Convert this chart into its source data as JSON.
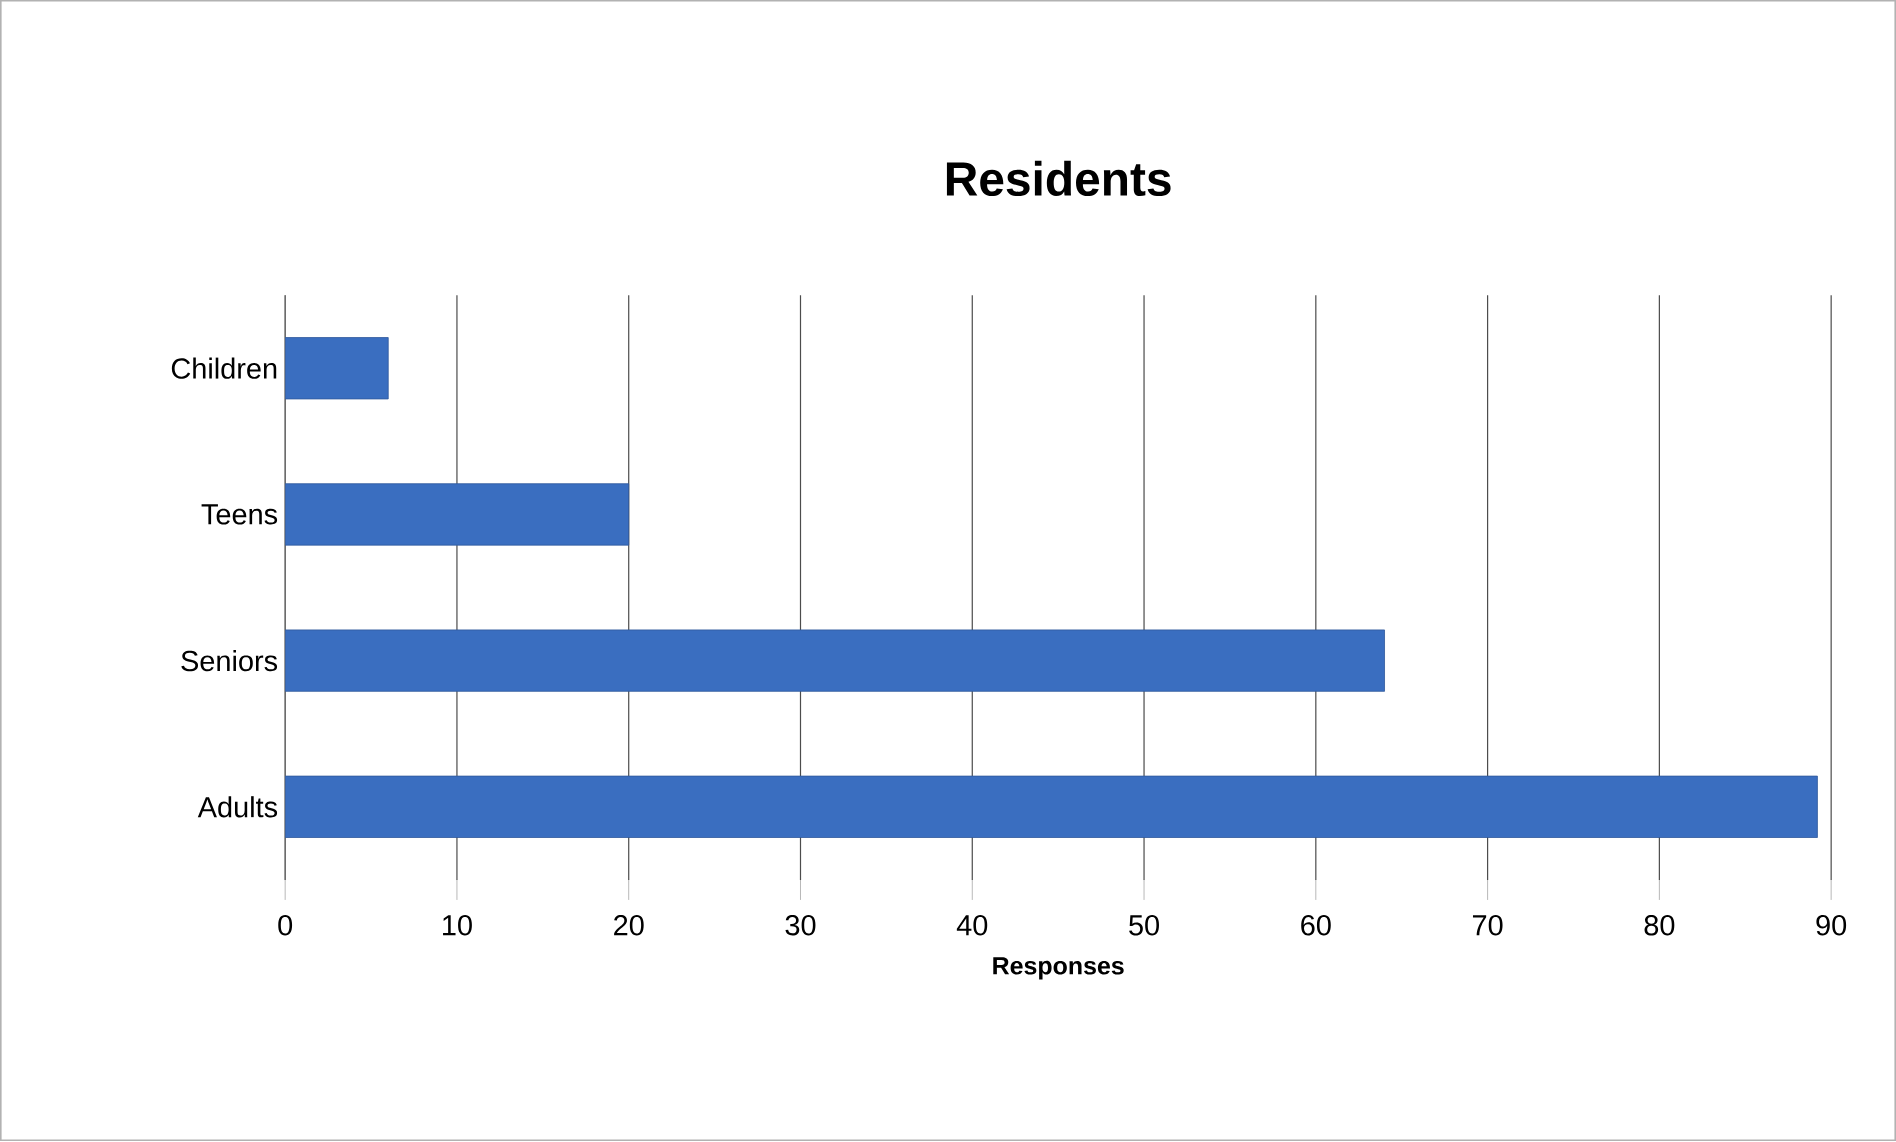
{
  "chart_data": {
    "type": "bar",
    "orientation": "horizontal",
    "title": "Residents",
    "xlabel": "Responses",
    "categories": [
      "Children",
      "Teens",
      "Seniors",
      "Adults"
    ],
    "values": [
      6,
      20,
      64,
      89.2
    ],
    "color": "#3a6ec0",
    "xlim": [
      0,
      90
    ],
    "xticks": [
      0,
      10,
      20,
      30,
      40,
      50,
      60,
      70,
      80,
      90
    ],
    "grid": "x"
  }
}
